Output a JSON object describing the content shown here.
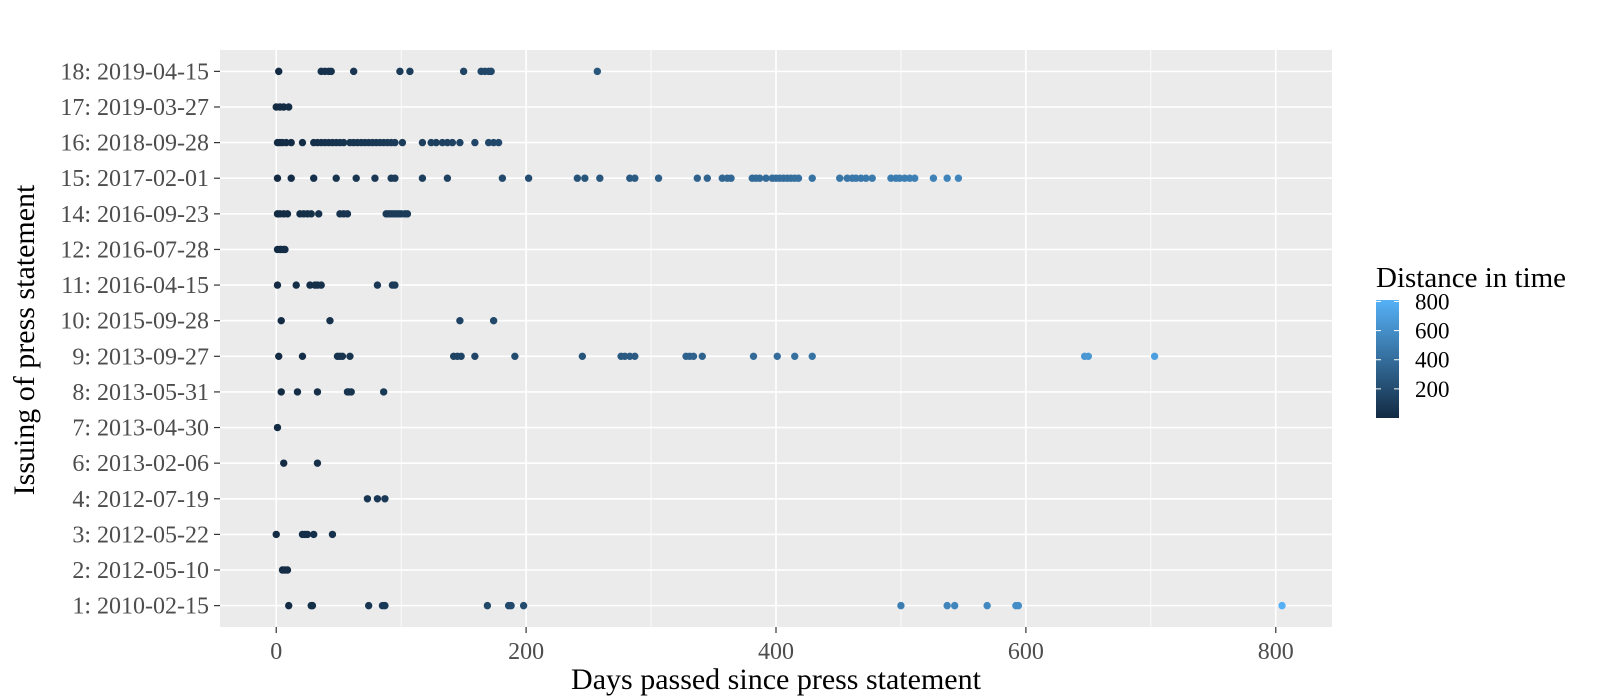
{
  "chart_data": {
    "type": "scatter",
    "xlabel": "Days passed since press statement",
    "ylabel": "Issuing of press statement",
    "xlim": [
      -45,
      845
    ],
    "x_ticks": [
      0,
      200,
      400,
      600,
      800
    ],
    "x_minor_ticks": [
      100,
      300,
      500,
      700
    ],
    "categories": [
      "1: 2010-02-15",
      "2: 2012-05-10",
      "3: 2012-05-22",
      "4: 2012-07-19",
      "6: 2013-02-06",
      "7: 2013-04-30",
      "8: 2013-05-31",
      "9: 2013-09-27",
      "10: 2015-09-28",
      "11: 2016-04-15",
      "12: 2016-07-28",
      "14: 2016-09-23",
      "15: 2017-02-01",
      "16: 2018-09-28",
      "17: 2019-03-27",
      "18: 2019-04-15"
    ],
    "color_by": "x",
    "color_scale": {
      "title": "Distance in time",
      "ticks": [
        200,
        400,
        600,
        800
      ],
      "low_color": "#132B43",
      "high_color": "#56B1F7",
      "domain": [
        0,
        810
      ]
    },
    "grid": true,
    "legend_position": "right",
    "panel_background": "#EBEBEB",
    "series": [
      {
        "category": "1: 2010-02-15",
        "x": [
          10,
          28,
          29,
          74,
          85,
          87,
          169,
          186,
          188,
          198,
          500,
          537,
          543,
          569,
          592,
          594,
          805
        ]
      },
      {
        "category": "2: 2012-05-10",
        "x": [
          5,
          7,
          9
        ]
      },
      {
        "category": "3: 2012-05-22",
        "x": [
          0,
          21,
          23,
          25,
          30,
          45
        ]
      },
      {
        "category": "4: 2012-07-19",
        "x": [
          73,
          81,
          87
        ]
      },
      {
        "category": "6: 2013-02-06",
        "x": [
          6,
          33
        ]
      },
      {
        "category": "7: 2013-04-30",
        "x": [
          1
        ]
      },
      {
        "category": "8: 2013-05-31",
        "x": [
          4,
          17,
          33,
          57,
          58,
          60,
          86
        ]
      },
      {
        "category": "9: 2013-09-27",
        "x": [
          2,
          21,
          49,
          51,
          53,
          59,
          142,
          145,
          148,
          159,
          191,
          245,
          276,
          279,
          283,
          287,
          328,
          331,
          334,
          341,
          382,
          401,
          415,
          429,
          647,
          650,
          703
        ]
      },
      {
        "category": "10: 2015-09-28",
        "x": [
          4,
          43,
          147,
          174
        ]
      },
      {
        "category": "11: 2016-04-15",
        "x": [
          1,
          16,
          27,
          31,
          33,
          36,
          81,
          93,
          95
        ]
      },
      {
        "category": "12: 2016-07-28",
        "x": [
          1,
          3,
          4,
          6,
          7
        ]
      },
      {
        "category": "14: 2016-09-23",
        "x": [
          1,
          3,
          6,
          9,
          19,
          22,
          25,
          28,
          34,
          51,
          54,
          57,
          88,
          90,
          92,
          94,
          96,
          98,
          100,
          103,
          105
        ]
      },
      {
        "category": "15: 2017-02-01",
        "x": [
          1,
          12,
          30,
          48,
          64,
          79,
          92,
          95,
          117,
          137,
          181,
          202,
          241,
          247,
          259,
          283,
          287,
          306,
          337,
          345,
          357,
          361,
          364,
          381,
          384,
          387,
          392,
          397,
          400,
          403,
          406,
          409,
          412,
          415,
          418,
          429,
          451,
          457,
          461,
          464,
          468,
          472,
          477,
          492,
          496,
          499,
          503,
          507,
          511,
          526,
          537,
          546
        ]
      },
      {
        "category": "16: 2018-09-28",
        "x": [
          1,
          3,
          5,
          8,
          12,
          21,
          30,
          33,
          36,
          39,
          42,
          45,
          48,
          51,
          54,
          59,
          62,
          65,
          68,
          71,
          74,
          77,
          80,
          83,
          86,
          89,
          92,
          95,
          101,
          117,
          124,
          128,
          133,
          137,
          141,
          147,
          159,
          170,
          174,
          178
        ]
      },
      {
        "category": "17: 2019-03-27",
        "x": [
          0,
          3,
          6,
          10
        ]
      },
      {
        "category": "18: 2019-04-15",
        "x": [
          2,
          36,
          39,
          42,
          44,
          62,
          99,
          107,
          150,
          164,
          167,
          170,
          172,
          257
        ]
      }
    ]
  }
}
